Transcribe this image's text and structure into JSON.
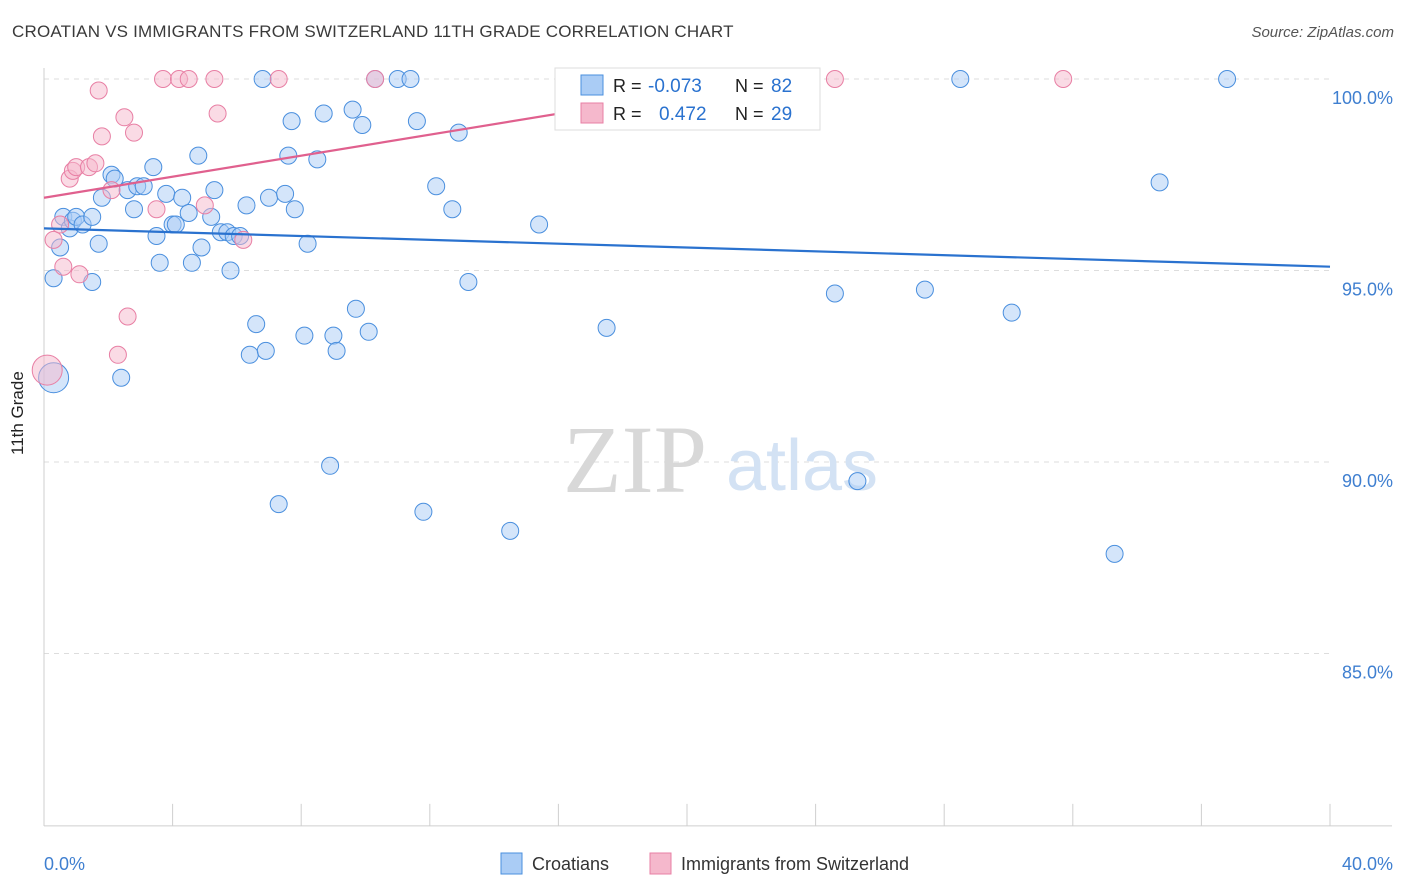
{
  "header": {
    "title": "CROATIAN VS IMMIGRANTS FROM SWITZERLAND 11TH GRADE CORRELATION CHART",
    "source": "Source: ZipAtlas.com"
  },
  "watermark": {
    "zip": "ZIP",
    "atlas": "atlas"
  },
  "colors": {
    "blue": "#4a8fde",
    "blue_fill": "#aaccf5",
    "blue_line": "#2a72cf",
    "pink": "#e87fa4",
    "pink_fill": "#f5b8cc",
    "pink_line": "#e0608e",
    "tick_text": "#3f7fd0",
    "grid": "#dddddd"
  },
  "legend_box": {
    "rows": [
      {
        "r_label": "R =",
        "r_value": "-0.073",
        "n_label": "N =",
        "n_value": "82"
      },
      {
        "r_label": "R =",
        "r_value": "0.472",
        "n_label": "N =",
        "n_value": "29"
      }
    ]
  },
  "chart_data": {
    "type": "scatter",
    "title": "CROATIAN VS IMMIGRANTS FROM SWITZERLAND 11TH GRADE CORRELATION CHART",
    "ylabel": "11th Grade",
    "xlabel": "",
    "xlim": [
      0,
      40
    ],
    "ylim": [
      80.5,
      100.4
    ],
    "x_tick_labels": [
      {
        "value": 0,
        "label": "0.0%"
      },
      {
        "value": 40,
        "label": "40.0%"
      }
    ],
    "y_tick_labels": [
      {
        "value": 100,
        "label": "100.0%"
      },
      {
        "value": 95,
        "label": "95.0%"
      },
      {
        "value": 90,
        "label": "90.0%"
      },
      {
        "value": 85,
        "label": "85.0%"
      }
    ],
    "grid": true,
    "legend_position": "bottom-center",
    "series": [
      {
        "name": "Croatians",
        "color": "#4a8fde",
        "trend": {
          "x0": 0,
          "y0": 96.1,
          "x1": 40,
          "y1": 95.1
        },
        "points": [
          [
            0.3,
            92.2
          ],
          [
            0.3,
            94.8
          ],
          [
            0.5,
            95.6
          ],
          [
            0.6,
            96.4
          ],
          [
            0.8,
            96.1
          ],
          [
            0.9,
            96.3
          ],
          [
            1.0,
            96.4
          ],
          [
            1.2,
            96.2
          ],
          [
            1.5,
            96.4
          ],
          [
            1.5,
            94.7
          ],
          [
            1.7,
            95.7
          ],
          [
            1.8,
            96.9
          ],
          [
            2.1,
            97.5
          ],
          [
            2.2,
            97.4
          ],
          [
            2.4,
            92.2
          ],
          [
            2.6,
            97.1
          ],
          [
            2.8,
            96.6
          ],
          [
            2.9,
            97.2
          ],
          [
            3.1,
            97.2
          ],
          [
            3.4,
            97.7
          ],
          [
            3.5,
            95.9
          ],
          [
            3.6,
            95.2
          ],
          [
            3.8,
            97.0
          ],
          [
            4.0,
            96.2
          ],
          [
            4.1,
            96.2
          ],
          [
            4.3,
            96.9
          ],
          [
            4.5,
            96.5
          ],
          [
            4.6,
            95.2
          ],
          [
            4.8,
            98.0
          ],
          [
            4.9,
            95.6
          ],
          [
            5.2,
            96.4
          ],
          [
            5.3,
            97.1
          ],
          [
            5.5,
            96.0
          ],
          [
            5.7,
            96.0
          ],
          [
            5.8,
            95.0
          ],
          [
            5.9,
            95.9
          ],
          [
            6.1,
            95.9
          ],
          [
            6.3,
            96.7
          ],
          [
            6.4,
            92.8
          ],
          [
            6.6,
            93.6
          ],
          [
            6.8,
            100.0
          ],
          [
            6.9,
            92.9
          ],
          [
            7.0,
            96.9
          ],
          [
            7.3,
            88.9
          ],
          [
            7.5,
            97.0
          ],
          [
            7.6,
            98.0
          ],
          [
            7.7,
            98.9
          ],
          [
            7.8,
            96.6
          ],
          [
            8.1,
            93.3
          ],
          [
            8.2,
            95.7
          ],
          [
            8.5,
            97.9
          ],
          [
            8.7,
            99.1
          ],
          [
            8.9,
            89.9
          ],
          [
            9.0,
            93.3
          ],
          [
            9.1,
            92.9
          ],
          [
            9.6,
            99.2
          ],
          [
            9.7,
            94.0
          ],
          [
            9.9,
            98.8
          ],
          [
            10.1,
            93.4
          ],
          [
            10.3,
            100.0
          ],
          [
            11.0,
            100.0
          ],
          [
            11.4,
            100.0
          ],
          [
            11.6,
            98.9
          ],
          [
            11.8,
            88.7
          ],
          [
            12.2,
            97.2
          ],
          [
            12.7,
            96.6
          ],
          [
            12.9,
            98.6
          ],
          [
            13.2,
            94.7
          ],
          [
            14.5,
            88.2
          ],
          [
            15.4,
            96.2
          ],
          [
            16.9,
            98.9
          ],
          [
            17.5,
            93.5
          ],
          [
            18.0,
            100.0
          ],
          [
            22.7,
            99.0
          ],
          [
            24.6,
            94.4
          ],
          [
            25.3,
            89.5
          ],
          [
            27.4,
            94.5
          ],
          [
            28.5,
            100.0
          ],
          [
            30.1,
            93.9
          ],
          [
            33.3,
            87.6
          ],
          [
            34.7,
            97.3
          ],
          [
            36.8,
            100.0
          ]
        ]
      },
      {
        "name": "Immigrants from Switzerland",
        "color": "#e87fa4",
        "trend": {
          "x0": 0,
          "y0": 96.9,
          "x1": 22.6,
          "y1": 100.0
        },
        "points": [
          [
            0.1,
            92.4
          ],
          [
            0.3,
            95.8
          ],
          [
            0.5,
            96.2
          ],
          [
            0.6,
            95.1
          ],
          [
            0.8,
            97.4
          ],
          [
            0.9,
            97.6
          ],
          [
            1.0,
            97.7
          ],
          [
            1.1,
            94.9
          ],
          [
            1.4,
            97.7
          ],
          [
            1.6,
            97.8
          ],
          [
            1.7,
            99.7
          ],
          [
            1.8,
            98.5
          ],
          [
            2.1,
            97.1
          ],
          [
            2.3,
            92.8
          ],
          [
            2.5,
            99.0
          ],
          [
            2.6,
            93.8
          ],
          [
            2.8,
            98.6
          ],
          [
            3.5,
            96.6
          ],
          [
            3.7,
            100.0
          ],
          [
            4.2,
            100.0
          ],
          [
            4.5,
            100.0
          ],
          [
            5.0,
            96.7
          ],
          [
            5.3,
            100.0
          ],
          [
            5.4,
            99.1
          ],
          [
            6.2,
            95.8
          ],
          [
            7.3,
            100.0
          ],
          [
            10.3,
            100.0
          ],
          [
            24.6,
            100.0
          ],
          [
            31.7,
            100.0
          ]
        ]
      }
    ]
  }
}
